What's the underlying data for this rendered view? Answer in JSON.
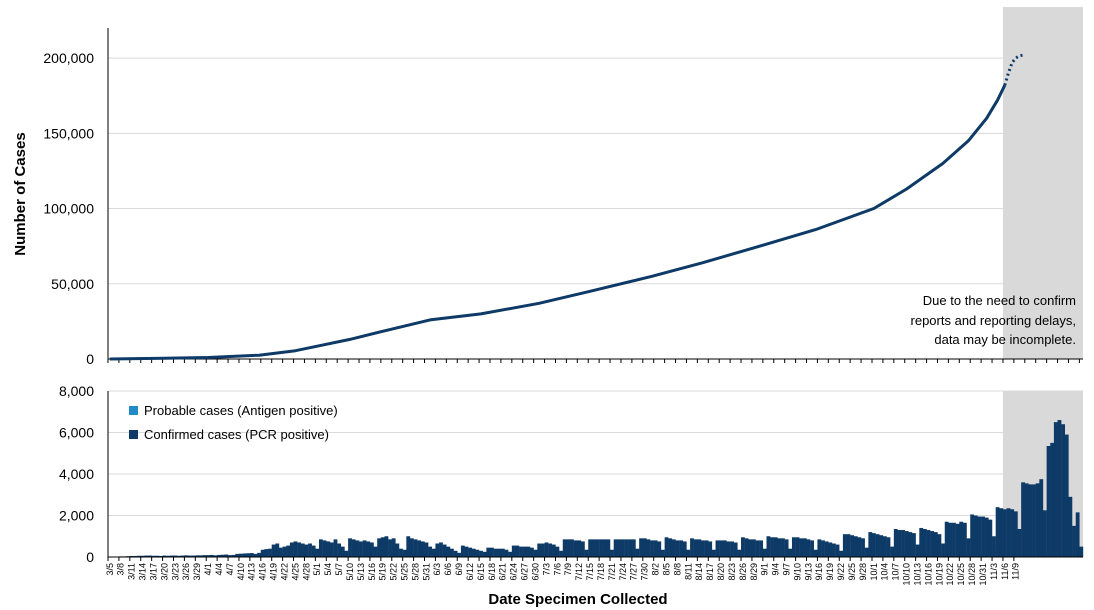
{
  "colors": {
    "confirmed": "#0d3a66",
    "probable": "#1f8cc8",
    "line": "#0d3a66",
    "incomplete_shade": "#d9d9d9",
    "grid": "#d9d9d9"
  },
  "annotation": {
    "lines": [
      "Due to the need to confirm",
      "reports and reporting delays,",
      "data may be incomplete."
    ]
  },
  "x_axis_title": "Date Specimen Collected",
  "chart_data": [
    {
      "type": "line",
      "ylabel": "Number of Cases",
      "ylim": [
        0,
        220000
      ],
      "yticks": [
        0,
        50000,
        100000,
        150000,
        200000
      ],
      "ytick_labels": [
        "0",
        "50,000",
        "100,000",
        "150,000",
        "200,000"
      ],
      "grid": true,
      "series": [
        {
          "style": "solid",
          "points": [
            [
              "2020-03-05",
              0
            ],
            [
              "2020-03-20",
              500
            ],
            [
              "2020-04-01",
              1000
            ],
            [
              "2020-04-15",
              2500
            ],
            [
              "2020-04-25",
              5500
            ],
            [
              "2020-05-01",
              8500
            ],
            [
              "2020-05-10",
              13000
            ],
            [
              "2020-05-20",
              19000
            ],
            [
              "2020-06-01",
              26000
            ],
            [
              "2020-06-15",
              30000
            ],
            [
              "2020-07-01",
              37000
            ],
            [
              "2020-07-15",
              45000
            ],
            [
              "2020-08-01",
              55000
            ],
            [
              "2020-08-15",
              64000
            ],
            [
              "2020-09-01",
              76000
            ],
            [
              "2020-09-15",
              86000
            ],
            [
              "2020-10-01",
              100000
            ],
            [
              "2020-10-10",
              113000
            ],
            [
              "2020-10-20",
              130000
            ],
            [
              "2020-10-27",
              145000
            ],
            [
              "2020-11-01",
              160000
            ],
            [
              "2020-11-04",
              172000
            ],
            [
              "2020-11-06",
              182000
            ]
          ]
        },
        {
          "style": "dotted",
          "points": [
            [
              "2020-11-06",
              182000
            ],
            [
              "2020-11-07",
              190000
            ],
            [
              "2020-11-08",
              197000
            ],
            [
              "2020-11-09",
              200000
            ],
            [
              "2020-11-10",
              201500
            ],
            [
              "2020-11-11",
              202000
            ]
          ]
        }
      ],
      "shaded_region": {
        "from": "2020-11-06",
        "to": "2020-11-13"
      }
    },
    {
      "type": "bar",
      "stacked": true,
      "ylim": [
        0,
        8000
      ],
      "yticks": [
        0,
        2000,
        4000,
        6000,
        8000
      ],
      "ytick_labels": [
        "0",
        "2,000",
        "4,000",
        "6,000",
        "8,000"
      ],
      "grid": true,
      "legend_position": "top-left",
      "series": [
        {
          "name": "Probable cases (Antigen positive)",
          "key": "probable"
        },
        {
          "name": "Confirmed cases (PCR positive)",
          "key": "confirmed"
        }
      ],
      "x_start": "2020-03-05",
      "confirmed_values": [
        10,
        20,
        20,
        30,
        30,
        40,
        50,
        50,
        60,
        60,
        70,
        70,
        60,
        60,
        50,
        70,
        60,
        70,
        70,
        60,
        70,
        80,
        70,
        70,
        80,
        80,
        90,
        90,
        100,
        80,
        100,
        110,
        120,
        90,
        100,
        150,
        160,
        170,
        180,
        190,
        150,
        200,
        350,
        380,
        400,
        600,
        650,
        450,
        500,
        550,
        700,
        750,
        700,
        650,
        600,
        650,
        550,
        400,
        850,
        800,
        750,
        700,
        850,
        650,
        500,
        300,
        900,
        850,
        800,
        750,
        800,
        750,
        700,
        500,
        900,
        950,
        1000,
        850,
        900,
        650,
        400,
        350,
        1000,
        900,
        850,
        800,
        750,
        700,
        500,
        400,
        650,
        700,
        600,
        500,
        400,
        300,
        200,
        550,
        500,
        450,
        400,
        350,
        300,
        250,
        450,
        450,
        400,
        400,
        400,
        350,
        250,
        550,
        550,
        500,
        500,
        500,
        450,
        350,
        650,
        650,
        700,
        650,
        600,
        500,
        300,
        850,
        850,
        850,
        800,
        800,
        750,
        350,
        850,
        850,
        850,
        850,
        850,
        850,
        350,
        850,
        850,
        850,
        850,
        850,
        850,
        400,
        900,
        900,
        850,
        800,
        800,
        750,
        350,
        950,
        900,
        850,
        800,
        800,
        750,
        350,
        900,
        850,
        850,
        800,
        800,
        750,
        350,
        800,
        800,
        800,
        750,
        750,
        700,
        350,
        950,
        900,
        850,
        850,
        800,
        800,
        400,
        1000,
        950,
        950,
        900,
        900,
        850,
        400,
        950,
        950,
        900,
        900,
        850,
        800,
        350,
        850,
        800,
        750,
        700,
        650,
        600,
        300,
        1100,
        1100,
        1050,
        1000,
        950,
        900,
        450,
        1200,
        1150,
        1100,
        1050,
        1000,
        950,
        500,
        1350,
        1300,
        1300,
        1250,
        1200,
        1150,
        600,
        1400,
        1350,
        1300,
        1250,
        1200,
        1100,
        650,
        1700,
        1650,
        1650,
        1600,
        1700,
        1650,
        900,
        2050,
        2000,
        1950,
        1950,
        1900,
        1800,
        1000,
        2400,
        2350,
        2300,
        2350,
        2300,
        2200,
        1350,
        3600,
        3550,
        3500,
        3500,
        3550,
        3750,
        2250,
        5350,
        5500,
        6500,
        6600,
        6400,
        5900,
        2900,
        1500,
        2150,
        500
      ],
      "probable_values": [
        0,
        0,
        0,
        0,
        0,
        0,
        0,
        0,
        0,
        0,
        0,
        0,
        0,
        0,
        0,
        0,
        0,
        0,
        0,
        0,
        0,
        0,
        0,
        0,
        0,
        0,
        0,
        0,
        0,
        0,
        0,
        0,
        0,
        0,
        0,
        0,
        0,
        0,
        0,
        0,
        0,
        0,
        0,
        0,
        0,
        0,
        0,
        0,
        0,
        0,
        0,
        0,
        0,
        0,
        0,
        0,
        0,
        0,
        0,
        0,
        0,
        0,
        0,
        0,
        0,
        0,
        0,
        0,
        0,
        0,
        0,
        0,
        0,
        0,
        0,
        0,
        0,
        0,
        0,
        0,
        0,
        0,
        0,
        0,
        0,
        0,
        0,
        0,
        0,
        0,
        0,
        0,
        0,
        0,
        0,
        0,
        0,
        0,
        0,
        0,
        0,
        0,
        0,
        0,
        0,
        0,
        0,
        0,
        0,
        0,
        0,
        0,
        0,
        0,
        0,
        0,
        0,
        0,
        0,
        0,
        0,
        0,
        0,
        0,
        0,
        0,
        0,
        0,
        0,
        0,
        0,
        0,
        0,
        0,
        0,
        0,
        0,
        0,
        0,
        0,
        0,
        0,
        0,
        0,
        0,
        0,
        0,
        0,
        0,
        0,
        0,
        0,
        0,
        0,
        0,
        0,
        0,
        0,
        0,
        0,
        0,
        0,
        0,
        0,
        0,
        0,
        0,
        0,
        0,
        0,
        0,
        0,
        0,
        0,
        0,
        0,
        0,
        0,
        0,
        0,
        0,
        0,
        0,
        0,
        0,
        0,
        0,
        0,
        0,
        0,
        0,
        0,
        0,
        0,
        0,
        0,
        0,
        0,
        0,
        0,
        0,
        0,
        0,
        0,
        0,
        0,
        0,
        0,
        0,
        0,
        0,
        0,
        0,
        0,
        0,
        0,
        0,
        0,
        0,
        0,
        0,
        0,
        0,
        0,
        0,
        0,
        0,
        0,
        0,
        0,
        0,
        0,
        0,
        0,
        0,
        0,
        0,
        0,
        0,
        0,
        0,
        0,
        0,
        0,
        0,
        0,
        0,
        0,
        0,
        0,
        0,
        0,
        0,
        0,
        0,
        0,
        0,
        0,
        0,
        0,
        0,
        0,
        0,
        0,
        0,
        0,
        0,
        0,
        0,
        0,
        0,
        0,
        0,
        0,
        0,
        0,
        0,
        0,
        0,
        0,
        0,
        0,
        0,
        0,
        0,
        0,
        0,
        0,
        0,
        0,
        0,
        0,
        100,
        120,
        150,
        150,
        120,
        100,
        50,
        30,
        60,
        20
      ],
      "shaded_region": {
        "from": "2020-11-06",
        "to": "2020-11-13"
      }
    }
  ],
  "x_tick_labels": [
    "3/5",
    "3/8",
    "3/11",
    "3/14",
    "3/17",
    "3/20",
    "3/23",
    "3/26",
    "3/29",
    "4/1",
    "4/4",
    "4/7",
    "4/10",
    "4/13",
    "4/16",
    "4/19",
    "4/22",
    "4/25",
    "4/28",
    "5/1",
    "5/4",
    "5/7",
    "5/10",
    "5/13",
    "5/16",
    "5/19",
    "5/22",
    "5/25",
    "5/28",
    "5/31",
    "6/3",
    "6/6",
    "6/9",
    "6/12",
    "6/15",
    "6/18",
    "6/21",
    "6/24",
    "6/27",
    "6/30",
    "7/3",
    "7/6",
    "7/9",
    "7/12",
    "7/15",
    "7/18",
    "7/21",
    "7/24",
    "7/27",
    "7/30",
    "8/2",
    "8/5",
    "8/8",
    "8/11",
    "8/14",
    "8/17",
    "8/20",
    "8/23",
    "8/26",
    "8/29",
    "9/1",
    "9/4",
    "9/7",
    "9/10",
    "9/13",
    "9/16",
    "9/19",
    "9/22",
    "9/25",
    "9/28",
    "10/1",
    "10/4",
    "10/7",
    "10/10",
    "10/13",
    "10/16",
    "10/19",
    "10/22",
    "10/25",
    "10/28",
    "10/31",
    "11/3",
    "11/6",
    "11/9"
  ]
}
